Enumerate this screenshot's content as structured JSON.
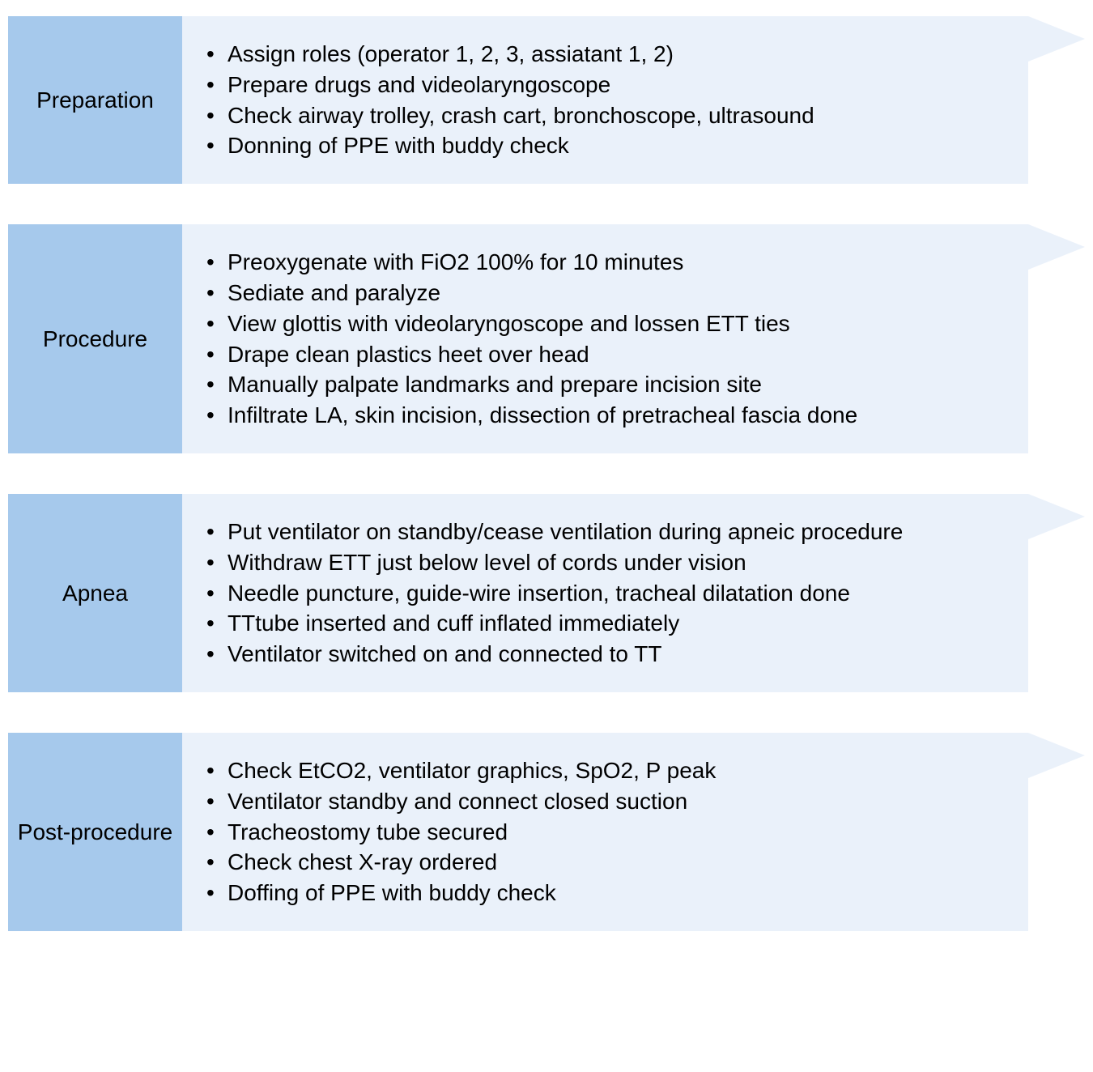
{
  "diagram": {
    "type": "flowchart",
    "background_color": "#ffffff",
    "label_bg": "#a6c9ec",
    "body_bg": "#eaf1fa",
    "text_color": "#000000",
    "label_fontsize": 28,
    "body_fontsize": 28,
    "step_gap": 50,
    "arrow_head_width": 70,
    "label_width": 215,
    "total_width": 1330,
    "steps": [
      {
        "label": "Preparation",
        "items": [
          "Assign roles (operator 1, 2, 3, assiatant 1, 2)",
          "Prepare drugs and videolaryngoscope",
          "Check airway trolley, crash cart, bronchoscope, ultrasound",
          "Donning of PPE with buddy check"
        ]
      },
      {
        "label": "Procedure",
        "items": [
          "Preoxygenate with FiO2 100% for 10 minutes",
          "Sediate and paralyze",
          "View glottis with videolaryngoscope and lossen ETT ties",
          "Drape clean plastics heet over head",
          "Manually palpate landmarks and prepare incision site",
          "Infiltrate LA, skin incision, dissection of pretracheal fascia done"
        ]
      },
      {
        "label": "Apnea",
        "items": [
          "Put ventilator on standby/cease ventilation during apneic procedure",
          "Withdraw ETT just below level of cords under vision",
          "Needle puncture, guide-wire insertion, tracheal dilatation done",
          "TTtube inserted and cuff inflated immediately",
          "Ventilator switched on and connected to TT"
        ]
      },
      {
        "label": "Post-procedure",
        "items": [
          "Check EtCO2, ventilator graphics, SpO2, P peak",
          "Ventilator standby and connect closed suction",
          "Tracheostomy tube secured",
          "Check chest X-ray ordered",
          "Doffing of PPE with buddy check"
        ]
      }
    ]
  }
}
